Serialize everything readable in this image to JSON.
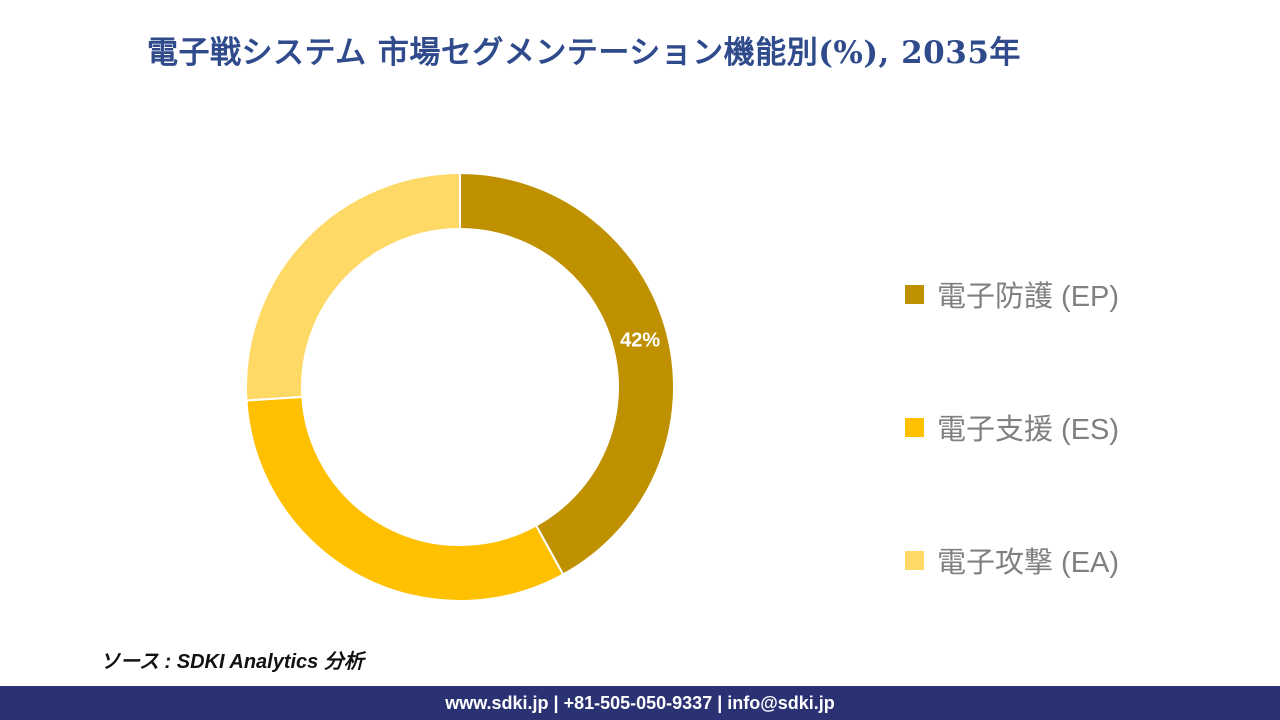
{
  "title": {
    "text": "電子戦システム 市場セグメンテーション機能別(%), 2035年",
    "color": "#2F4B8C"
  },
  "chart_data": {
    "type": "pie",
    "donut": true,
    "title": "電子戦システム 市場セグメンテーション機能別(%), 2035年",
    "start_angle_deg": 0,
    "direction": "clockwise",
    "inner_radius_ratio": 0.74,
    "legend_position": "right",
    "data_label_color": "#FFFFFF",
    "segments": [
      {
        "label": "電子防護 (EP)",
        "value": 42,
        "color": "#BF9000",
        "data_label": "42%"
      },
      {
        "label": "電子支援 (ES)",
        "value": 32,
        "color": "#FFC000",
        "data_label": ""
      },
      {
        "label": "電子攻撃 (EA)",
        "value": 26,
        "color": "#FFD966",
        "data_label": ""
      }
    ]
  },
  "source": {
    "text": "ソース : SDKI Analytics 分析"
  },
  "footer": {
    "text": "www.sdki.jp | +81-505-050-9337 | info@sdki.jp",
    "bg": "#2B3273"
  }
}
